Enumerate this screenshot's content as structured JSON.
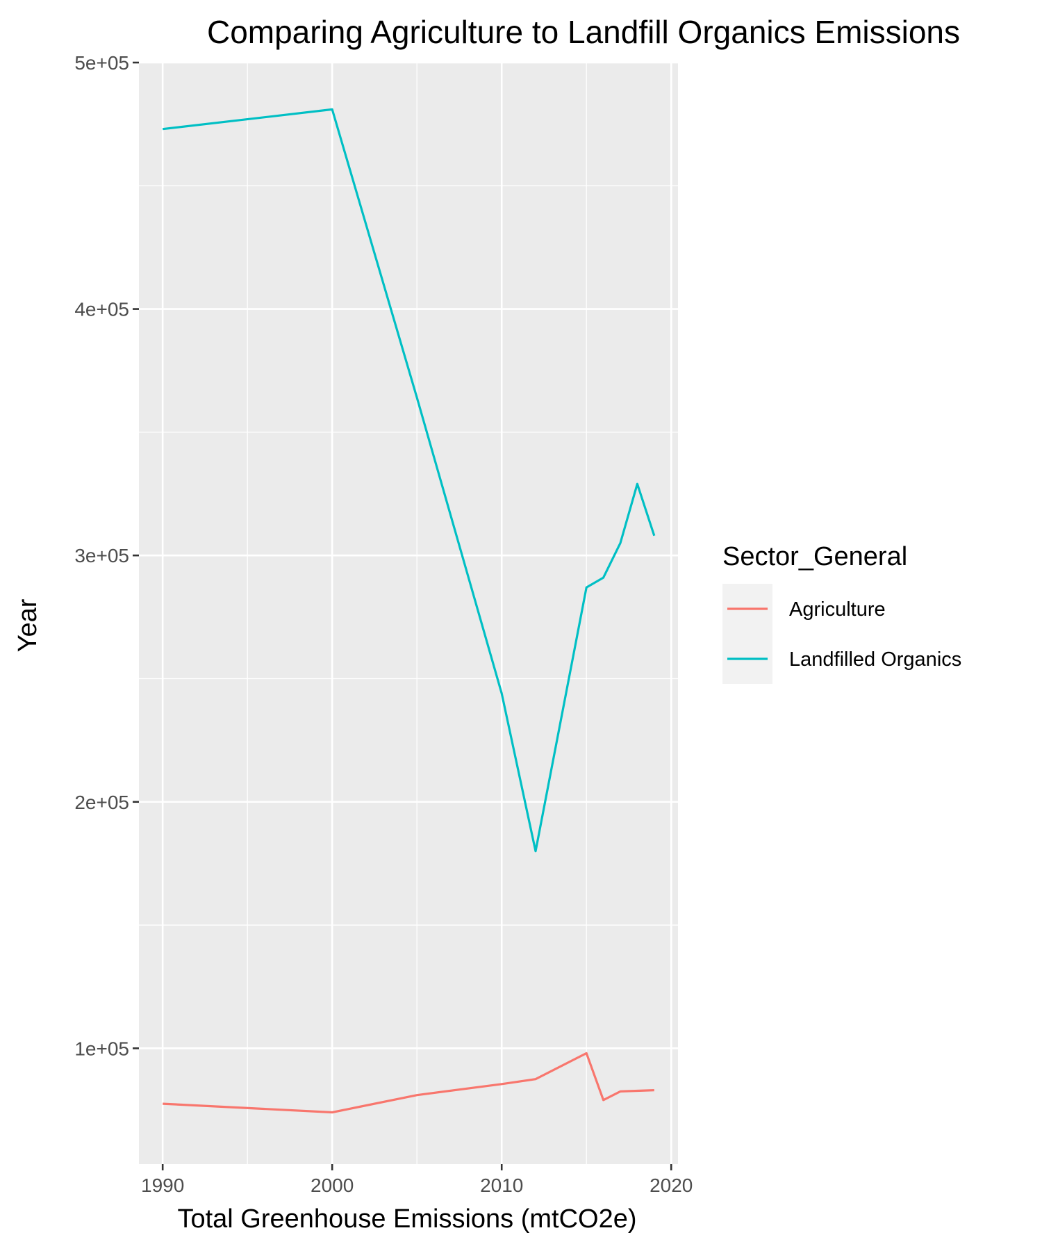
{
  "chart_data": {
    "type": "line",
    "title": "Comparing Agriculture to Landfill Organics Emissions",
    "xlabel": "Total Greenhouse Emissions (mtCO2e)",
    "ylabel": "Year",
    "xlim": [
      1988.6,
      2020.4
    ],
    "ylim": [
      53000,
      500000
    ],
    "x_ticks": [
      1990,
      2000,
      2010,
      2020
    ],
    "x_tick_labels": [
      "1990",
      "2000",
      "2010",
      "2020"
    ],
    "x_minor_ticks": [
      1995,
      2005,
      2015
    ],
    "y_ticks": [
      100000,
      200000,
      300000,
      400000,
      500000
    ],
    "y_tick_labels": [
      "1e+05",
      "2e+05",
      "3e+05",
      "4e+05",
      "5e+05"
    ],
    "y_minor_ticks": [
      150000,
      250000,
      350000,
      450000
    ],
    "grid": true,
    "legend": {
      "title": "Sector_General",
      "placement": "right"
    },
    "series": [
      {
        "name": "Agriculture",
        "color": "#F8766D",
        "points": [
          {
            "x": 1990,
            "y": 77500
          },
          {
            "x": 2000,
            "y": 74000
          },
          {
            "x": 2005,
            "y": 81000
          },
          {
            "x": 2010,
            "y": 85500
          },
          {
            "x": 2012,
            "y": 87500
          },
          {
            "x": 2015,
            "y": 98000
          },
          {
            "x": 2016,
            "y": 79000
          },
          {
            "x": 2017,
            "y": 82500
          },
          {
            "x": 2019,
            "y": 83000
          }
        ]
      },
      {
        "name": "Landfilled Organics",
        "color": "#00BFC4",
        "points": [
          {
            "x": 1990,
            "y": 473000
          },
          {
            "x": 2000,
            "y": 481000
          },
          {
            "x": 2005,
            "y": 364000
          },
          {
            "x": 2010,
            "y": 244000
          },
          {
            "x": 2012,
            "y": 180000
          },
          {
            "x": 2015,
            "y": 287000
          },
          {
            "x": 2016,
            "y": 291000
          },
          {
            "x": 2017,
            "y": 305000
          },
          {
            "x": 2018,
            "y": 329000
          },
          {
            "x": 2019,
            "y": 308000
          }
        ]
      }
    ]
  }
}
